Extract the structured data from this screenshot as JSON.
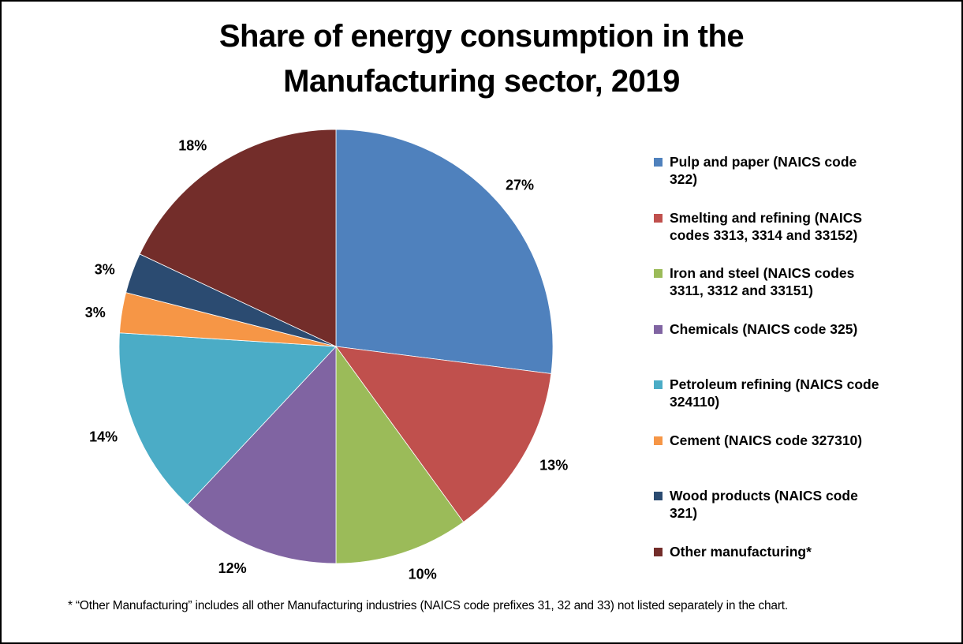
{
  "title": {
    "line1": "Share of energy consumption in the",
    "line2": "Manufacturing sector, 2019"
  },
  "footnote": "* “Other Manufacturing” includes all other Manufacturing industries (NAICS code prefixes 31, 32 and 33) not listed separately in the chart.",
  "chart_data": {
    "type": "pie",
    "title": "Share of energy consumption in the Manufacturing sector, 2019",
    "units": "percent share of energy consumption",
    "start_angle_deg": 0,
    "direction": "clockwise",
    "data_labels": "percent, outside end",
    "legend_position": "right",
    "slices": [
      {
        "id": "pulp-and-paper",
        "label": "Pulp and paper (NAICS code 322)",
        "legend_label": "Pulp and paper (NAICS code\n322)",
        "value_pct": 27,
        "display_label": "27%",
        "color": "#4F81BD"
      },
      {
        "id": "smelting-refining",
        "label": "Smelting and refining (NAICS codes 3313, 3314 and 33152)",
        "legend_label": "Smelting and refining (NAICS\ncodes 3313, 3314 and 33152)",
        "value_pct": 13,
        "display_label": "13%",
        "color": "#C0504D"
      },
      {
        "id": "iron-and-steel",
        "label": "Iron and steel (NAICS codes 3311, 3312 and 33151)",
        "legend_label": "Iron and steel (NAICS codes\n3311, 3312 and 33151)",
        "value_pct": 10,
        "display_label": "10%",
        "color": "#9BBB59"
      },
      {
        "id": "chemicals",
        "label": "Chemicals (NAICS code 325)",
        "legend_label": "Chemicals (NAICS code 325)",
        "value_pct": 12,
        "display_label": "12%",
        "color": "#8064A2"
      },
      {
        "id": "petroleum-refining",
        "label": "Petroleum refining (NAICS code 324110)",
        "legend_label": "Petroleum refining (NAICS code\n324110)",
        "value_pct": 14,
        "display_label": "14%",
        "color": "#4BACC6"
      },
      {
        "id": "cement",
        "label": "Cement (NAICS code 327310)",
        "legend_label": "Cement (NAICS code 327310)",
        "value_pct": 3,
        "display_label": "3%",
        "color": "#F69646"
      },
      {
        "id": "wood-products",
        "label": "Wood products (NAICS code 321)",
        "legend_label": "Wood products (NAICS code\n321)",
        "value_pct": 3,
        "display_label": "3%",
        "color": "#2B4B71"
      },
      {
        "id": "other-manufacturing",
        "label": "Other manufacturing*",
        "legend_label": "Other manufacturing*",
        "value_pct": 18,
        "display_label": "18%",
        "color": "#732D2A"
      }
    ]
  }
}
